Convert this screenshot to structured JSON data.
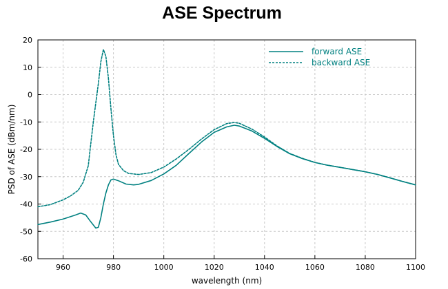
{
  "chart_data": {
    "type": "line",
    "title": "ASE Spectrum",
    "xlabel": "wavelength (nm)",
    "ylabel": "PSD of ASE (dBm/nm)",
    "xlim": [
      950,
      1100
    ],
    "ylim": [
      -60,
      20
    ],
    "xticks": [
      960,
      980,
      1000,
      1020,
      1040,
      1060,
      1080,
      1100
    ],
    "yticks": [
      -60,
      -50,
      -40,
      -30,
      -20,
      -10,
      0,
      10,
      20
    ],
    "grid": true,
    "legend_position": "top-right",
    "line_color": "#008080",
    "series": [
      {
        "name": "forward ASE",
        "style": "solid",
        "points": [
          [
            950,
            -47.5
          ],
          [
            955,
            -46.6
          ],
          [
            960,
            -45.5
          ],
          [
            965,
            -44.0
          ],
          [
            967,
            -43.3
          ],
          [
            969,
            -44.0
          ],
          [
            971,
            -46.5
          ],
          [
            973,
            -48.8
          ],
          [
            974,
            -48.5
          ],
          [
            975,
            -45.0
          ],
          [
            976,
            -40.0
          ],
          [
            977,
            -36.0
          ],
          [
            978,
            -33.0
          ],
          [
            979,
            -31.2
          ],
          [
            980,
            -30.9
          ],
          [
            982,
            -31.5
          ],
          [
            985,
            -32.7
          ],
          [
            988,
            -33.0
          ],
          [
            990,
            -32.8
          ],
          [
            995,
            -31.4
          ],
          [
            1000,
            -29.0
          ],
          [
            1005,
            -25.8
          ],
          [
            1010,
            -21.5
          ],
          [
            1015,
            -17.3
          ],
          [
            1020,
            -13.8
          ],
          [
            1025,
            -11.8
          ],
          [
            1028,
            -11.2
          ],
          [
            1030,
            -11.5
          ],
          [
            1035,
            -13.3
          ],
          [
            1040,
            -16.0
          ],
          [
            1045,
            -19.0
          ],
          [
            1050,
            -21.6
          ],
          [
            1055,
            -23.4
          ],
          [
            1060,
            -24.8
          ],
          [
            1065,
            -25.8
          ],
          [
            1070,
            -26.6
          ],
          [
            1075,
            -27.4
          ],
          [
            1080,
            -28.2
          ],
          [
            1085,
            -29.2
          ],
          [
            1090,
            -30.5
          ],
          [
            1095,
            -31.8
          ],
          [
            1100,
            -33.0
          ]
        ]
      },
      {
        "name": "backward ASE",
        "style": "dashed",
        "points": [
          [
            950,
            -41.0
          ],
          [
            955,
            -40.2
          ],
          [
            960,
            -38.5
          ],
          [
            963,
            -37.0
          ],
          [
            966,
            -35.0
          ],
          [
            968,
            -32.0
          ],
          [
            970,
            -26.0
          ],
          [
            971,
            -18.0
          ],
          [
            972,
            -10.0
          ],
          [
            973,
            -3.0
          ],
          [
            974,
            4.0
          ],
          [
            975,
            12.0
          ],
          [
            976,
            16.5
          ],
          [
            977,
            14.0
          ],
          [
            978,
            6.0
          ],
          [
            979,
            -5.0
          ],
          [
            980,
            -15.0
          ],
          [
            981,
            -22.0
          ],
          [
            982,
            -25.5
          ],
          [
            984,
            -27.8
          ],
          [
            986,
            -28.8
          ],
          [
            990,
            -29.2
          ],
          [
            995,
            -28.5
          ],
          [
            1000,
            -26.5
          ],
          [
            1005,
            -23.5
          ],
          [
            1010,
            -20.0
          ],
          [
            1015,
            -16.2
          ],
          [
            1020,
            -12.8
          ],
          [
            1025,
            -10.6
          ],
          [
            1028,
            -10.2
          ],
          [
            1030,
            -10.5
          ],
          [
            1035,
            -12.6
          ],
          [
            1040,
            -15.5
          ],
          [
            1045,
            -18.8
          ],
          [
            1050,
            -21.5
          ],
          [
            1055,
            -23.3
          ],
          [
            1060,
            -24.8
          ],
          [
            1065,
            -25.8
          ],
          [
            1070,
            -26.6
          ],
          [
            1075,
            -27.4
          ],
          [
            1080,
            -28.2
          ],
          [
            1085,
            -29.2
          ],
          [
            1090,
            -30.5
          ],
          [
            1095,
            -31.8
          ],
          [
            1100,
            -33.0
          ]
        ]
      }
    ]
  }
}
